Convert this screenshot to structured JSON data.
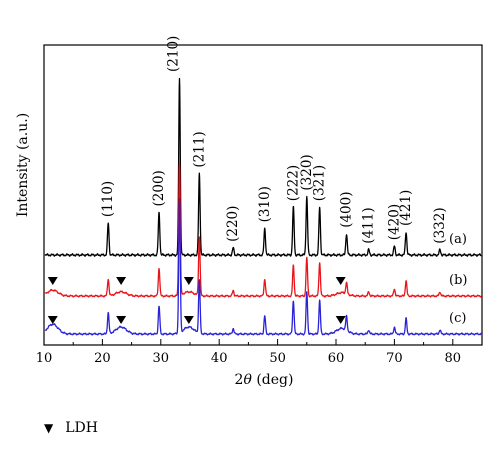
{
  "chart_data": {
    "type": "line",
    "title": "",
    "xlabel_prefix": "2",
    "xlabel_symbol": "θ",
    "xlabel_suffix": " (deg)",
    "ylabel": "Intensity (a.u.)",
    "xlim": [
      10,
      85
    ],
    "x_ticks": [
      10,
      20,
      30,
      40,
      50,
      60,
      70,
      80
    ],
    "grid": false,
    "series": [
      {
        "name": "(a)",
        "color": "#000000",
        "baseline": 0.0,
        "hump_scale": 0.0
      },
      {
        "name": "(b)",
        "color": "#e8141a",
        "baseline": 0.0,
        "hump_scale": 0.6
      },
      {
        "name": "(c)",
        "color": "#2a22d6",
        "baseline": 0.0,
        "hump_scale": 1.0
      }
    ],
    "peaks": [
      {
        "x": 21.0,
        "label": "(110)",
        "heights": [
          0.18,
          0.12,
          0.15
        ]
      },
      {
        "x": 29.7,
        "label": "(200)",
        "heights": [
          0.24,
          0.2,
          0.2
        ]
      },
      {
        "x": 33.2,
        "label": "(210)",
        "heights": [
          1.0,
          0.95,
          0.95
        ]
      },
      {
        "x": 36.6,
        "label": "(211)",
        "heights": [
          0.46,
          0.42,
          0.38
        ]
      },
      {
        "x": 42.4,
        "label": "(220)",
        "heights": [
          0.04,
          0.04,
          0.04
        ]
      },
      {
        "x": 47.8,
        "label": "(310)",
        "heights": [
          0.15,
          0.12,
          0.13
        ]
      },
      {
        "x": 52.7,
        "label": "(222)",
        "heights": [
          0.27,
          0.22,
          0.24
        ]
      },
      {
        "x": 55.0,
        "label": "(320)",
        "heights": [
          0.33,
          0.27,
          0.3
        ]
      },
      {
        "x": 57.2,
        "label": "(321)",
        "heights": [
          0.27,
          0.24,
          0.24
        ]
      },
      {
        "x": 61.8,
        "label": "(400)",
        "heights": [
          0.12,
          0.08,
          0.1
        ]
      },
      {
        "x": 65.6,
        "label": "(411)",
        "heights": [
          0.03,
          0.03,
          0.03
        ]
      },
      {
        "x": 70.0,
        "label": "(420)",
        "heights": [
          0.05,
          0.05,
          0.05
        ]
      },
      {
        "x": 72.0,
        "label": "(421)",
        "heights": [
          0.13,
          0.11,
          0.11
        ]
      },
      {
        "x": 77.8,
        "label": "(332)",
        "heights": [
          0.03,
          0.03,
          0.03
        ]
      }
    ],
    "ldh_humps": [
      {
        "x": 11.5,
        "height": 0.07
      },
      {
        "x": 23.2,
        "height": 0.05
      },
      {
        "x": 34.8,
        "height": 0.05
      },
      {
        "x": 61.0,
        "height": 0.04
      }
    ],
    "ldh_markers": [
      {
        "series": "(b)",
        "x": [
          11.5,
          23.2,
          34.8,
          60.8
        ]
      },
      {
        "series": "(c)",
        "x": [
          11.5,
          23.2,
          34.8,
          60.8
        ]
      }
    ],
    "legend": {
      "symbol": "▼",
      "label": "LDH",
      "position": "bottom-left"
    }
  }
}
